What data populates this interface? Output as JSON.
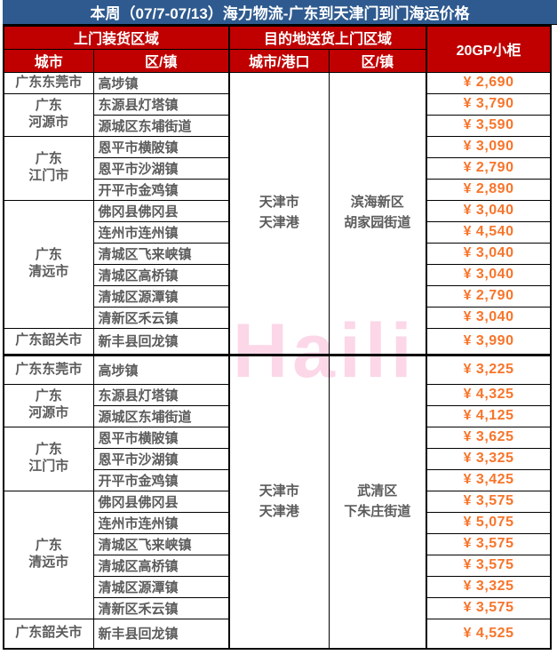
{
  "title": "本周（07/7-07/13）海力物流-广东到天津门到门海运价格",
  "watermark": "Haili",
  "colors": {
    "title_bar_blue": "#2e5a8f",
    "header_red": "#c00000",
    "price_orange": "#f7752b",
    "watermark_pink": "#fbd7e7"
  },
  "header": {
    "pickup_group": "上门装货区域",
    "delivery_group": "目的地送货上门区域",
    "container_type": "20GP小柜",
    "pickup_city": "城市",
    "pickup_district": "区/镇",
    "delivery_city": "城市/港口",
    "delivery_district": "区/镇"
  },
  "sections": [
    {
      "dest_city": "天津市\n天津港",
      "dest_district": "滨海新区\n胡家园街道",
      "groups": [
        {
          "city": "广东东莞市",
          "rows": [
            {
              "district": "高埗镇",
              "price": "¥ 2,690"
            }
          ]
        },
        {
          "city": "广东\n河源市",
          "rows": [
            {
              "district": "东源县灯塔镇",
              "price": "¥ 3,790"
            },
            {
              "district": "源城区东埔街道",
              "price": "¥ 3,590"
            }
          ]
        },
        {
          "city": "广东\n江门市",
          "rows": [
            {
              "district": "恩平市横陂镇",
              "price": "¥ 3,090"
            },
            {
              "district": "恩平市沙湖镇",
              "price": "¥ 2,790"
            },
            {
              "district": "开平市金鸡镇",
              "price": "¥ 2,890"
            }
          ]
        },
        {
          "city": "广东\n清远市",
          "rows": [
            {
              "district": "佛冈县佛冈县",
              "price": "¥ 3,040"
            },
            {
              "district": "连州市连州镇",
              "price": "¥ 4,540"
            },
            {
              "district": "清城区飞来峡镇",
              "price": "¥ 3,040"
            },
            {
              "district": "清城区高桥镇",
              "price": "¥ 3,040"
            },
            {
              "district": "清城区源潭镇",
              "price": "¥ 2,790"
            },
            {
              "district": "清新区禾云镇",
              "price": "¥ 3,040"
            }
          ]
        },
        {
          "city": "广东韶关市",
          "rows": [
            {
              "district": "新丰县回龙镇",
              "price": "¥ 3,990"
            }
          ]
        }
      ]
    },
    {
      "dest_city": "天津市\n天津港",
      "dest_district": "武清区\n下朱庄街道",
      "groups": [
        {
          "city": "广东东莞市",
          "rows": [
            {
              "district": "高埗镇",
              "price": "¥ 3,225"
            }
          ]
        },
        {
          "city": "广东\n河源市",
          "rows": [
            {
              "district": "东源县灯塔镇",
              "price": "¥ 4,325"
            },
            {
              "district": "源城区东埔街道",
              "price": "¥ 4,125"
            }
          ]
        },
        {
          "city": "广东\n江门市",
          "rows": [
            {
              "district": "恩平市横陂镇",
              "price": "¥ 3,625"
            },
            {
              "district": "恩平市沙湖镇",
              "price": "¥ 3,325"
            },
            {
              "district": "开平市金鸡镇",
              "price": "¥ 3,425"
            }
          ]
        },
        {
          "city": "广东\n清远市",
          "rows": [
            {
              "district": "佛冈县佛冈县",
              "price": "¥ 3,575"
            },
            {
              "district": "连州市连州镇",
              "price": "¥ 5,075"
            },
            {
              "district": "清城区飞来峡镇",
              "price": "¥ 3,575"
            },
            {
              "district": "清城区高桥镇",
              "price": "¥ 3,575"
            },
            {
              "district": "清城区源潭镇",
              "price": "¥ 3,325"
            },
            {
              "district": "清新区禾云镇",
              "price": "¥ 3,575"
            }
          ]
        },
        {
          "city": "广东韶关市",
          "rows": [
            {
              "district": "新丰县回龙镇",
              "price": "¥ 4,525"
            }
          ]
        }
      ]
    }
  ]
}
